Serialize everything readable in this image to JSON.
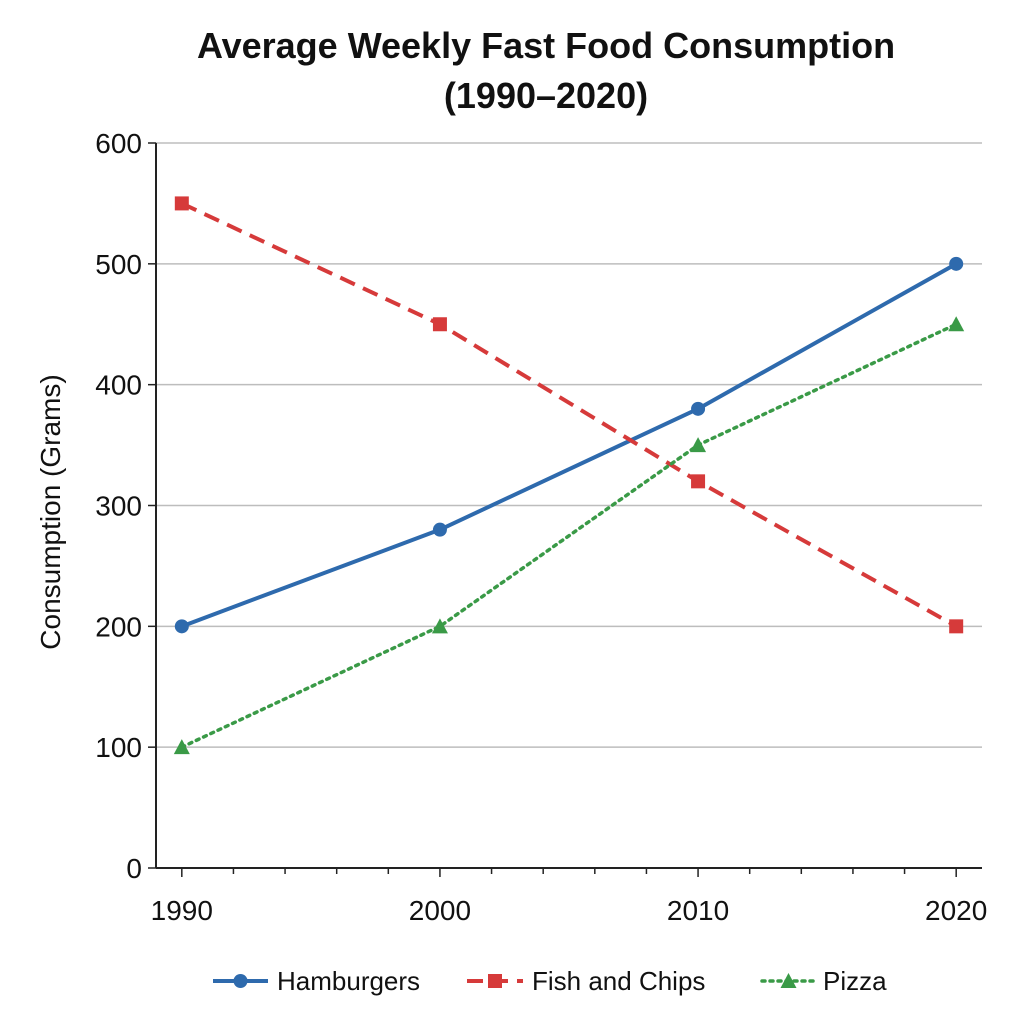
{
  "chart_data": {
    "type": "line",
    "title_lines": [
      "Average Weekly Fast Food Consumption",
      "(1990–2020)"
    ],
    "xlabel": "",
    "ylabel": "Consumption (Grams)",
    "x": [
      1990,
      2000,
      2010,
      2020
    ],
    "x_tick_labels": [
      "1990",
      "2000",
      "2010",
      "2020"
    ],
    "xlim": [
      1989,
      2021
    ],
    "ylim": [
      0,
      600
    ],
    "y_ticks": [
      0,
      100,
      200,
      300,
      400,
      500,
      600
    ],
    "y_tick_labels": [
      "0",
      "100",
      "200",
      "300",
      "400",
      "500",
      "600"
    ],
    "grid": "horizontal",
    "legend": "bottom",
    "series": [
      {
        "name": "Hamburgers",
        "values": [
          200,
          280,
          380,
          500
        ],
        "color": "#2e6aad",
        "dash": "solid",
        "marker": "circle"
      },
      {
        "name": "Fish and Chips",
        "values": [
          550,
          450,
          320,
          200
        ],
        "color": "#d63a3a",
        "dash": "dashed",
        "marker": "square"
      },
      {
        "name": "Pizza",
        "values": [
          100,
          200,
          350,
          450
        ],
        "color": "#3a9a47",
        "dash": "dotted",
        "marker": "triangle"
      }
    ]
  }
}
